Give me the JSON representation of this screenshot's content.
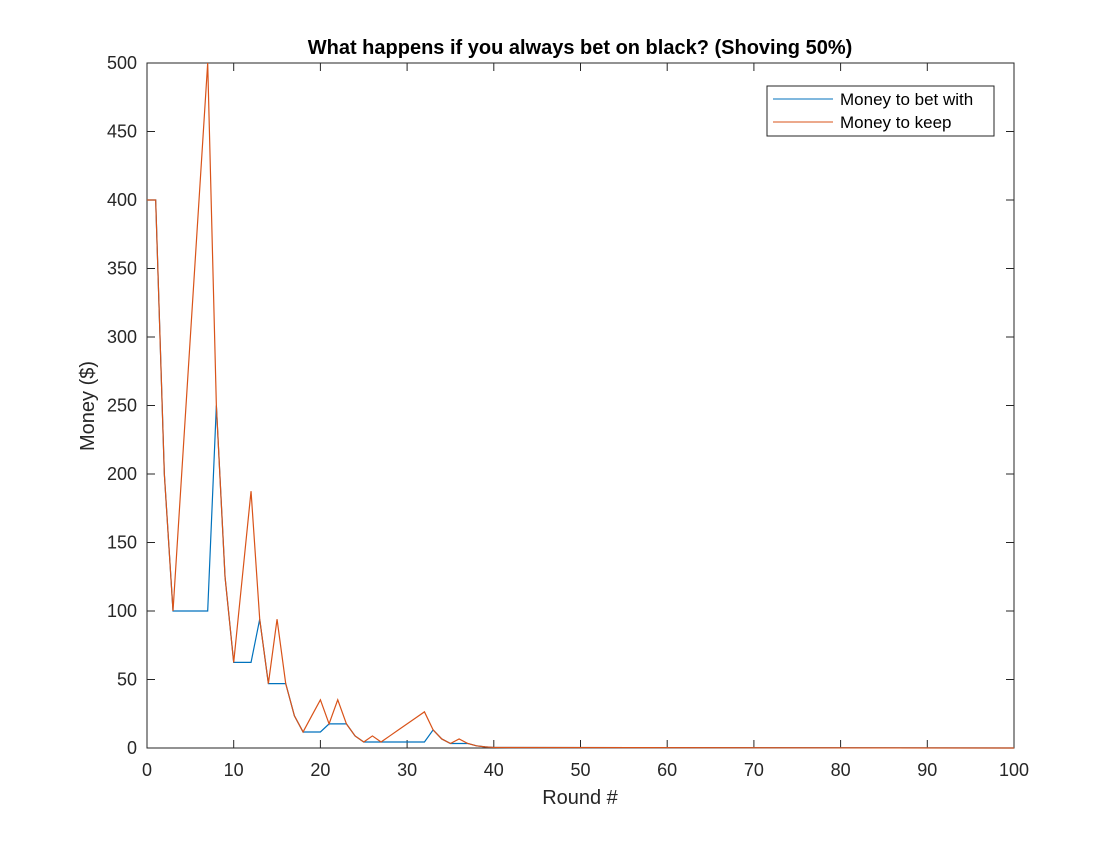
{
  "chart_data": {
    "type": "line",
    "title": "What happens if you always bet on black? (Shoving 50%)",
    "xlabel": "Round #",
    "ylabel": "Money ($)",
    "xlim": [
      0,
      100
    ],
    "ylim": [
      0,
      500
    ],
    "xticks": [
      0,
      10,
      20,
      30,
      40,
      50,
      60,
      70,
      80,
      90,
      100
    ],
    "yticks": [
      0,
      50,
      100,
      150,
      200,
      250,
      300,
      350,
      400,
      450,
      500
    ],
    "grid": false,
    "legend_position": "top-right",
    "series": [
      {
        "name": "Money to bet with",
        "color": "#0072BD",
        "x": [
          0,
          1,
          2,
          3,
          4,
          5,
          6,
          7,
          8,
          9,
          10,
          11,
          12,
          13,
          14,
          15,
          16,
          17,
          18,
          19,
          20,
          21,
          22,
          23,
          24,
          25,
          26,
          27,
          28,
          29,
          30,
          31,
          32,
          33,
          34,
          35,
          36,
          37,
          38,
          39,
          40,
          100
        ],
        "y": [
          400,
          400,
          200,
          100,
          100,
          100,
          100,
          100,
          250,
          125,
          62.5,
          62.5,
          62.5,
          94,
          47,
          47,
          47,
          23.5,
          11.7,
          11.7,
          11.7,
          17.6,
          17.6,
          17.6,
          8.8,
          4.4,
          4.4,
          4.4,
          4.4,
          4.4,
          4.4,
          4.4,
          4.4,
          13.2,
          6.6,
          3.3,
          3.3,
          3.3,
          1.6,
          0.8,
          0.4,
          0
        ]
      },
      {
        "name": "Money to keep",
        "color": "#D95319",
        "x": [
          0,
          1,
          2,
          3,
          4,
          5,
          6,
          7,
          8,
          9,
          10,
          11,
          12,
          13,
          14,
          15,
          16,
          17,
          18,
          19,
          20,
          21,
          22,
          23,
          24,
          25,
          26,
          27,
          28,
          29,
          30,
          31,
          32,
          33,
          34,
          35,
          36,
          37,
          38,
          39,
          40,
          100
        ],
        "y": [
          400,
          400,
          200,
          100,
          200,
          300,
          400,
          500,
          250,
          125,
          62.5,
          125,
          187.5,
          94,
          47,
          94,
          47,
          23.5,
          11.7,
          23.5,
          35.2,
          17.6,
          35.2,
          17.6,
          8.8,
          4.4,
          8.8,
          4.4,
          8.8,
          13.2,
          17.6,
          22,
          26.4,
          13.2,
          6.6,
          3.3,
          6.6,
          3.3,
          1.6,
          0.8,
          0.4,
          0
        ]
      }
    ]
  }
}
